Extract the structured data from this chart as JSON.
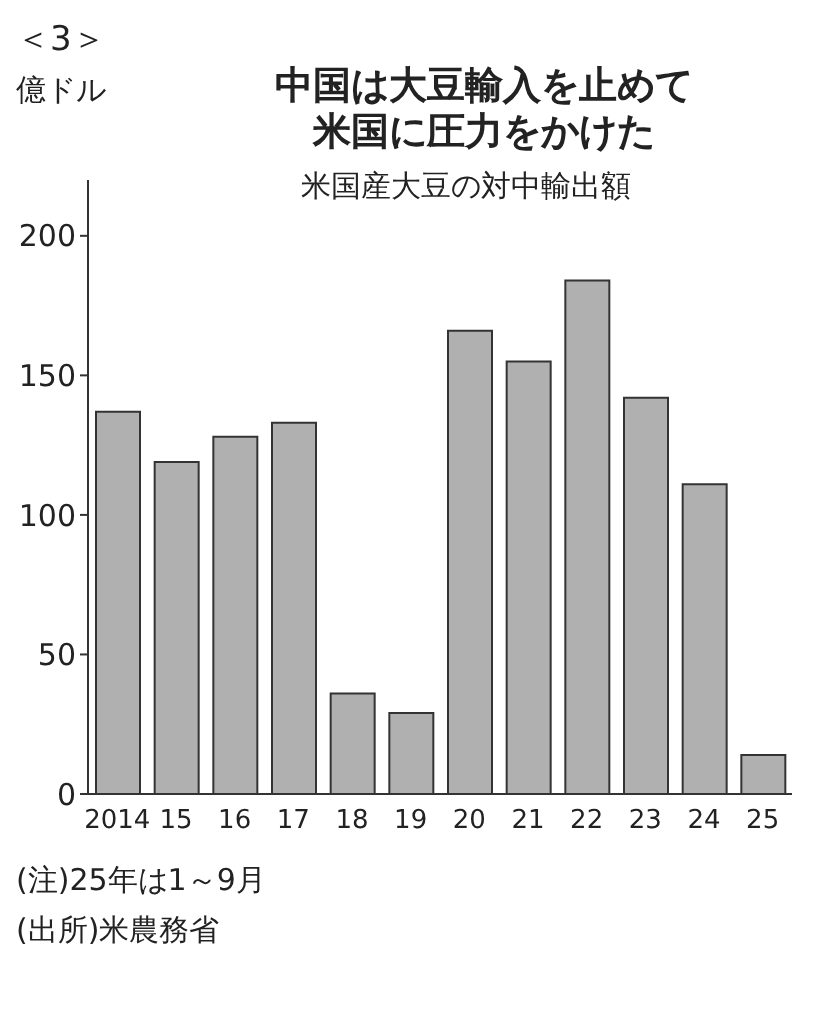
{
  "chart_data": {
    "type": "bar",
    "title": "中国は大豆輸入を止めて米国に圧力をかけた",
    "subtitle": "米国産大豆の対中輸出額",
    "ylabel": "億ドル",
    "categories": [
      "2014",
      "15",
      "16",
      "17",
      "18",
      "19",
      "20",
      "21",
      "22",
      "23",
      "24",
      "25"
    ],
    "values": [
      137,
      119,
      128,
      133,
      36,
      29,
      166,
      155,
      184,
      142,
      111,
      14
    ],
    "color": "#b0b0b0",
    "ylim": [
      0,
      220
    ],
    "yticks": [
      0,
      50,
      100,
      150,
      200
    ],
    "grid": false,
    "legend": false,
    "annotations": [
      "＜3＞",
      "(注)25年は1～9月",
      "(出所)米農務省"
    ]
  }
}
